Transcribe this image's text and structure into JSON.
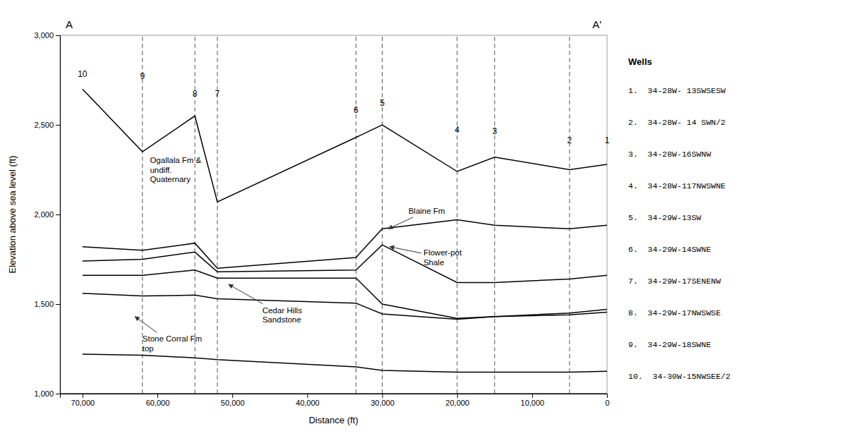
{
  "chart_data": {
    "type": "line",
    "xlabel": "Distance (ft)",
    "ylabel": "Elevation above sea level (ft)",
    "x": [
      70000,
      62000,
      55000,
      52000,
      33500,
      30000,
      20000,
      15000,
      5000,
      0
    ],
    "series": [
      {
        "color": "#000000",
        "values": [
          2700,
          2350,
          2550,
          2070,
          2430,
          2500,
          2240,
          2320,
          2250,
          2280
        ]
      },
      {
        "color": "#000000",
        "values": [
          1820,
          1800,
          1840,
          1700,
          1760,
          1920,
          1970,
          1940,
          1920,
          1940
        ]
      },
      {
        "color": "#000000",
        "values": [
          1740,
          1750,
          1790,
          1680,
          1690,
          1830,
          1620,
          1620,
          1640,
          1660
        ]
      },
      {
        "color": "#000000",
        "values": [
          1660,
          1660,
          1690,
          1645,
          1645,
          1500,
          1420,
          1430,
          1450,
          1470
        ]
      },
      {
        "color": "#000000",
        "values": [
          1560,
          1545,
          1550,
          1530,
          1505,
          1445,
          1415,
          1430,
          1440,
          1455
        ]
      },
      {
        "color": "#000000",
        "values": [
          1220,
          1215,
          1200,
          1190,
          1150,
          1130,
          1120,
          1120,
          1120,
          1125
        ]
      }
    ],
    "xlim": [
      73000,
      0
    ],
    "xticks": [
      0,
      {
        "value": 10000,
        "label": "10,000"
      },
      {
        "value": 20000,
        "label": "20,000"
      },
      {
        "value": 30000,
        "label": "30,000"
      },
      {
        "value": 40000,
        "label": "40,000"
      },
      {
        "value": 50000,
        "label": "50,000"
      },
      {
        "value": 60000,
        "label": "60,000"
      },
      {
        "value": 70000,
        "label": "70,000"
      }
    ],
    "ylim": [
      1000,
      3000
    ],
    "yticks": [
      {
        "value": 1000,
        "label": "1,000"
      },
      {
        "value": 1500,
        "label": "1,500"
      },
      {
        "value": 2000,
        "label": "2,000"
      },
      {
        "value": 2500,
        "label": "2,500"
      },
      {
        "value": 3000,
        "label": "3,000"
      }
    ],
    "grid": false,
    "vertical_lines": {
      "x": [
        62000,
        55000,
        52000,
        33500,
        30000,
        20000,
        15000,
        5000
      ],
      "color": "#555555",
      "line_style": "dashed"
    },
    "horizontal_lines": {
      "y": [
        1000
      ],
      "color": "#000000"
    },
    "well_labels": [
      {
        "text": "10",
        "x": 70000,
        "y": 2760
      },
      {
        "text": "9",
        "x": 62000,
        "y": 2750
      },
      {
        "text": "8",
        "x": 55000,
        "y": 2650
      },
      {
        "text": "7",
        "x": 52000,
        "y": 2650
      },
      {
        "text": "6",
        "x": 33500,
        "y": 2560
      },
      {
        "text": "5",
        "x": 30000,
        "y": 2600
      },
      {
        "text": "4",
        "x": 20000,
        "y": 2450
      },
      {
        "text": "3",
        "x": 15000,
        "y": 2440
      },
      {
        "text": "2",
        "x": 5000,
        "y": 2390
      },
      {
        "text": "1",
        "x": 0,
        "y": 2390
      }
    ],
    "annotations": [
      {
        "text": "Ogallala Fm &\nundiff.\nQuaternary",
        "x": 61000,
        "y": 2250
      },
      {
        "text": "Blaine Fm",
        "x": 26500,
        "y": 2020,
        "arrow_x": 29200,
        "arrow_y": 1920
      },
      {
        "text": "Flower-pot\nShale",
        "x": 24500,
        "y": 1760,
        "arrow_x": 29000,
        "arrow_y": 1820
      },
      {
        "text": "Cedar Hills\nSandstone",
        "x": 46000,
        "y": 1440,
        "arrow_x": 50500,
        "arrow_y": 1610
      },
      {
        "text": "Stone Corral Fm\ntop",
        "x": 62000,
        "y": 1280,
        "arrow_x": 63000,
        "arrow_y": 1430
      }
    ],
    "end_labels": [
      "A",
      "A'"
    ],
    "well_list_title": "Wells",
    "well_list": [
      "1.  34-28W- 13SWSESW",
      "2.  34-28W- 14 SWN/2",
      "3.  34-28W-16SWNW",
      "4.  34-28W-117NWSWNE",
      "5.  34-29W-13SW",
      "6.  34-29W-14SWNE",
      "7.  34-29W-17SENENW",
      "8.  34-29W-17NWSWSE",
      "9.  34-29W-18SWNE",
      "10.  34-30W-15NWSEE/2"
    ]
  }
}
